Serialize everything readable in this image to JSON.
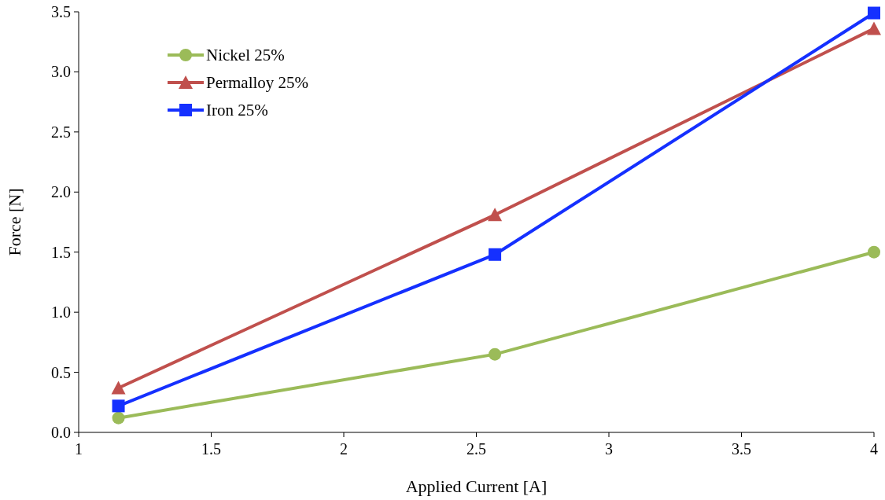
{
  "chart_data": {
    "type": "line",
    "xlabel": "Applied Current [A]",
    "ylabel": "Force [N]",
    "xlim": [
      1,
      4
    ],
    "xticks": [
      1,
      1.5,
      2,
      2.5,
      3,
      3.5,
      4
    ],
    "ylim": [
      0,
      3.5
    ],
    "yticks": [
      {
        "value": 0,
        "label": "0.0"
      },
      {
        "value": 0.5,
        "label": "0.5"
      },
      {
        "value": 1,
        "label": "1.0"
      },
      {
        "value": 1.5,
        "label": "1.5"
      },
      {
        "value": 2,
        "label": "2.0"
      },
      {
        "value": 2.5,
        "label": "2.5"
      },
      {
        "value": 3,
        "label": "3.0"
      },
      {
        "value": 3.5,
        "label": "3.5"
      }
    ],
    "x": [
      1.15,
      2.57,
      4
    ],
    "legend": "top left",
    "grid": false,
    "series": [
      {
        "name": "Nickel 25%",
        "color": "#9bbb59",
        "marker": "circle",
        "values": [
          0.12,
          0.65,
          1.5
        ]
      },
      {
        "name": "Permalloy 25%",
        "color": "#c0504d",
        "marker": "triangle",
        "values": [
          0.37,
          1.81,
          3.36
        ]
      },
      {
        "name": "Iron 25%",
        "color": "#1530ff",
        "marker": "square",
        "values": [
          0.22,
          1.48,
          3.49
        ]
      }
    ]
  }
}
